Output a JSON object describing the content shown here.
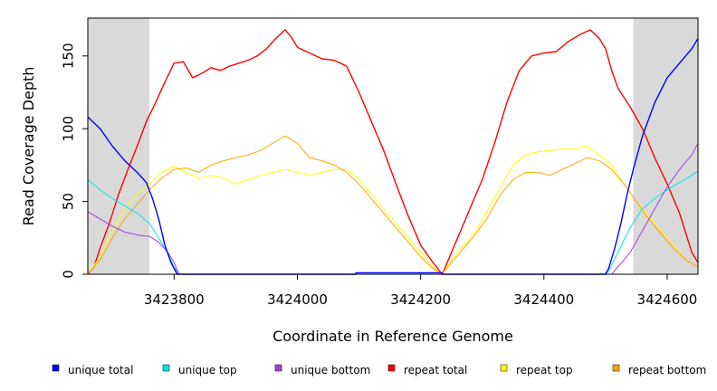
{
  "chart_data": {
    "type": "line",
    "title": "",
    "xlabel": "Coordinate in Reference Genome",
    "ylabel": "Read Coverage Depth",
    "xlim": [
      3423660,
      3424650
    ],
    "ylim": [
      0,
      176
    ],
    "x_ticks": [
      3423800,
      3424000,
      3424200,
      3424400,
      3424600
    ],
    "y_ticks": [
      0,
      50,
      100,
      150
    ],
    "shaded_regions": [
      [
        3423660,
        3423760
      ],
      [
        3424545,
        3424650
      ]
    ],
    "shade_color": "#d9d9d9",
    "legend_position": "bottom",
    "series": [
      {
        "name": "unique total",
        "color": "#0000ff",
        "points": [
          [
            3423660,
            108
          ],
          [
            3423680,
            100
          ],
          [
            3423700,
            88
          ],
          [
            3423720,
            78
          ],
          [
            3423740,
            70
          ],
          [
            3423755,
            63
          ],
          [
            3423765,
            52
          ],
          [
            3423775,
            38
          ],
          [
            3423785,
            20
          ],
          [
            3423795,
            8
          ],
          [
            3423805,
            0
          ],
          [
            3424095,
            0
          ],
          [
            3424095,
            1
          ],
          [
            3424235,
            1
          ],
          [
            3424235,
            0
          ],
          [
            3424500,
            0
          ],
          [
            3424505,
            4
          ],
          [
            3424515,
            18
          ],
          [
            3424525,
            35
          ],
          [
            3424535,
            55
          ],
          [
            3424545,
            72
          ],
          [
            3424560,
            95
          ],
          [
            3424580,
            118
          ],
          [
            3424600,
            135
          ],
          [
            3424620,
            145
          ],
          [
            3424640,
            155
          ],
          [
            3424650,
            162
          ]
        ]
      },
      {
        "name": "unique top",
        "color": "#00e5e5",
        "points": [
          [
            3423660,
            65
          ],
          [
            3423680,
            58
          ],
          [
            3423700,
            52
          ],
          [
            3423720,
            47
          ],
          [
            3423740,
            42
          ],
          [
            3423760,
            35
          ],
          [
            3423775,
            25
          ],
          [
            3423790,
            14
          ],
          [
            3423800,
            5
          ],
          [
            3423808,
            0
          ],
          [
            3424500,
            0
          ],
          [
            3424505,
            2
          ],
          [
            3424520,
            15
          ],
          [
            3424540,
            32
          ],
          [
            3424560,
            45
          ],
          [
            3424580,
            52
          ],
          [
            3424600,
            58
          ],
          [
            3424620,
            63
          ],
          [
            3424640,
            68
          ],
          [
            3424650,
            71
          ]
        ]
      },
      {
        "name": "unique bottom",
        "color": "#a040e0",
        "points": [
          [
            3423660,
            43
          ],
          [
            3423680,
            38
          ],
          [
            3423700,
            33
          ],
          [
            3423720,
            29
          ],
          [
            3423740,
            27
          ],
          [
            3423760,
            26
          ],
          [
            3423775,
            22
          ],
          [
            3423790,
            15
          ],
          [
            3423800,
            8
          ],
          [
            3423808,
            0
          ],
          [
            3424510,
            0
          ],
          [
            3424520,
            5
          ],
          [
            3424540,
            15
          ],
          [
            3424560,
            30
          ],
          [
            3424580,
            45
          ],
          [
            3424600,
            60
          ],
          [
            3424620,
            72
          ],
          [
            3424640,
            82
          ],
          [
            3424650,
            90
          ]
        ]
      },
      {
        "name": "repeat total",
        "color": "#ff0000",
        "points": [
          [
            3423660,
            0
          ],
          [
            3423670,
            5
          ],
          [
            3423680,
            18
          ],
          [
            3423695,
            35
          ],
          [
            3423710,
            55
          ],
          [
            3423725,
            72
          ],
          [
            3423740,
            88
          ],
          [
            3423755,
            105
          ],
          [
            3423770,
            118
          ],
          [
            3423785,
            132
          ],
          [
            3423800,
            145
          ],
          [
            3423815,
            146
          ],
          [
            3423830,
            135
          ],
          [
            3423845,
            138
          ],
          [
            3423860,
            142
          ],
          [
            3423875,
            140
          ],
          [
            3423890,
            143
          ],
          [
            3423905,
            145
          ],
          [
            3423920,
            147
          ],
          [
            3423935,
            150
          ],
          [
            3423950,
            155
          ],
          [
            3423965,
            162
          ],
          [
            3423980,
            168
          ],
          [
            3423990,
            163
          ],
          [
            3424000,
            156
          ],
          [
            3424020,
            152
          ],
          [
            3424040,
            148
          ],
          [
            3424060,
            147
          ],
          [
            3424080,
            143
          ],
          [
            3424100,
            125
          ],
          [
            3424120,
            105
          ],
          [
            3424140,
            85
          ],
          [
            3424160,
            62
          ],
          [
            3424180,
            40
          ],
          [
            3424200,
            20
          ],
          [
            3424220,
            8
          ],
          [
            3424235,
            0
          ],
          [
            3424240,
            5
          ],
          [
            3424260,
            25
          ],
          [
            3424280,
            45
          ],
          [
            3424300,
            65
          ],
          [
            3424320,
            90
          ],
          [
            3424340,
            118
          ],
          [
            3424360,
            140
          ],
          [
            3424380,
            150
          ],
          [
            3424400,
            152
          ],
          [
            3424420,
            153
          ],
          [
            3424440,
            160
          ],
          [
            3424460,
            165
          ],
          [
            3424475,
            168
          ],
          [
            3424490,
            162
          ],
          [
            3424500,
            155
          ],
          [
            3424510,
            140
          ],
          [
            3424520,
            128
          ],
          [
            3424540,
            115
          ],
          [
            3424560,
            100
          ],
          [
            3424580,
            80
          ],
          [
            3424600,
            62
          ],
          [
            3424620,
            42
          ],
          [
            3424640,
            15
          ],
          [
            3424650,
            8
          ]
        ]
      },
      {
        "name": "repeat top",
        "color": "#ffff00",
        "points": [
          [
            3423660,
            0
          ],
          [
            3423680,
            12
          ],
          [
            3423700,
            30
          ],
          [
            3423720,
            45
          ],
          [
            3423740,
            55
          ],
          [
            3423760,
            62
          ],
          [
            3423780,
            70
          ],
          [
            3423800,
            74
          ],
          [
            3423820,
            70
          ],
          [
            3423840,
            66
          ],
          [
            3423860,
            68
          ],
          [
            3423880,
            66
          ],
          [
            3423900,
            62
          ],
          [
            3423920,
            65
          ],
          [
            3423940,
            68
          ],
          [
            3423960,
            70
          ],
          [
            3423980,
            72
          ],
          [
            3424000,
            70
          ],
          [
            3424020,
            68
          ],
          [
            3424040,
            70
          ],
          [
            3424060,
            72
          ],
          [
            3424080,
            72
          ],
          [
            3424100,
            65
          ],
          [
            3424120,
            55
          ],
          [
            3424140,
            45
          ],
          [
            3424160,
            35
          ],
          [
            3424180,
            25
          ],
          [
            3424200,
            15
          ],
          [
            3424220,
            5
          ],
          [
            3424235,
            0
          ],
          [
            3424250,
            10
          ],
          [
            3424270,
            20
          ],
          [
            3424290,
            30
          ],
          [
            3424310,
            45
          ],
          [
            3424330,
            60
          ],
          [
            3424350,
            75
          ],
          [
            3424370,
            82
          ],
          [
            3424390,
            84
          ],
          [
            3424410,
            85
          ],
          [
            3424430,
            86
          ],
          [
            3424450,
            86
          ],
          [
            3424470,
            88
          ],
          [
            3424490,
            82
          ],
          [
            3424510,
            75
          ],
          [
            3424530,
            62
          ],
          [
            3424550,
            50
          ],
          [
            3424570,
            40
          ],
          [
            3424590,
            30
          ],
          [
            3424610,
            20
          ],
          [
            3424630,
            10
          ],
          [
            3424650,
            5
          ]
        ]
      },
      {
        "name": "repeat bottom",
        "color": "#ffa500",
        "points": [
          [
            3423660,
            0
          ],
          [
            3423680,
            10
          ],
          [
            3423700,
            25
          ],
          [
            3423720,
            38
          ],
          [
            3423740,
            48
          ],
          [
            3423760,
            58
          ],
          [
            3423780,
            66
          ],
          [
            3423800,
            72
          ],
          [
            3423820,
            73
          ],
          [
            3423840,
            70
          ],
          [
            3423860,
            75
          ],
          [
            3423880,
            78
          ],
          [
            3423900,
            80
          ],
          [
            3423920,
            82
          ],
          [
            3423940,
            85
          ],
          [
            3423960,
            90
          ],
          [
            3423980,
            95
          ],
          [
            3424000,
            90
          ],
          [
            3424020,
            80
          ],
          [
            3424040,
            78
          ],
          [
            3424060,
            75
          ],
          [
            3424080,
            70
          ],
          [
            3424100,
            62
          ],
          [
            3424120,
            52
          ],
          [
            3424140,
            42
          ],
          [
            3424160,
            32
          ],
          [
            3424180,
            22
          ],
          [
            3424200,
            12
          ],
          [
            3424220,
            4
          ],
          [
            3424235,
            0
          ],
          [
            3424250,
            8
          ],
          [
            3424270,
            18
          ],
          [
            3424290,
            28
          ],
          [
            3424310,
            40
          ],
          [
            3424330,
            55
          ],
          [
            3424350,
            65
          ],
          [
            3424370,
            70
          ],
          [
            3424390,
            70
          ],
          [
            3424410,
            68
          ],
          [
            3424430,
            72
          ],
          [
            3424450,
            76
          ],
          [
            3424470,
            80
          ],
          [
            3424490,
            78
          ],
          [
            3424510,
            72
          ],
          [
            3424530,
            62
          ],
          [
            3424550,
            50
          ],
          [
            3424570,
            38
          ],
          [
            3424590,
            28
          ],
          [
            3424610,
            18
          ],
          [
            3424630,
            10
          ],
          [
            3424650,
            5
          ]
        ]
      }
    ]
  }
}
